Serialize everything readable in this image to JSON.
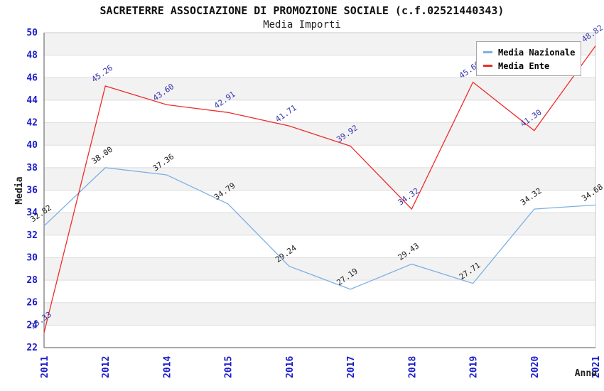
{
  "chart_data": {
    "type": "line",
    "title": "SACRETERRE ASSOCIAZIONE DI PROMOZIONE SOCIALE (c.f.02521440343)",
    "subtitle": "Media Importi",
    "xlabel": "Anno",
    "ylabel": "Media",
    "categories": [
      "2011",
      "2012",
      "2014",
      "2015",
      "2016",
      "2017",
      "2018",
      "2019",
      "2020",
      "2021"
    ],
    "series": [
      {
        "name": "Media Nazionale",
        "line_color": "#7db0e3",
        "label_color": "#222222",
        "values": [
          32.82,
          38.0,
          37.36,
          34.79,
          29.24,
          27.19,
          29.43,
          27.71,
          34.32,
          34.68
        ]
      },
      {
        "name": "Media Ente",
        "line_color": "#ee2c2c",
        "label_color": "#3333aa",
        "values": [
          23.33,
          45.26,
          43.6,
          42.91,
          41.71,
          39.92,
          34.32,
          45.6,
          41.3,
          48.82
        ]
      }
    ],
    "ylim": [
      22,
      50
    ],
    "ytick_step": 2,
    "grid": "horizontal-bands",
    "legend_position": "top-right"
  },
  "colors": {
    "tick_label": "#1a1acc",
    "band_gray": "#f2f2f2",
    "band_white": "#ffffff",
    "grid_line": "#dddddd",
    "plot_border": "#c8c8c8",
    "axis_line": "#555555"
  }
}
